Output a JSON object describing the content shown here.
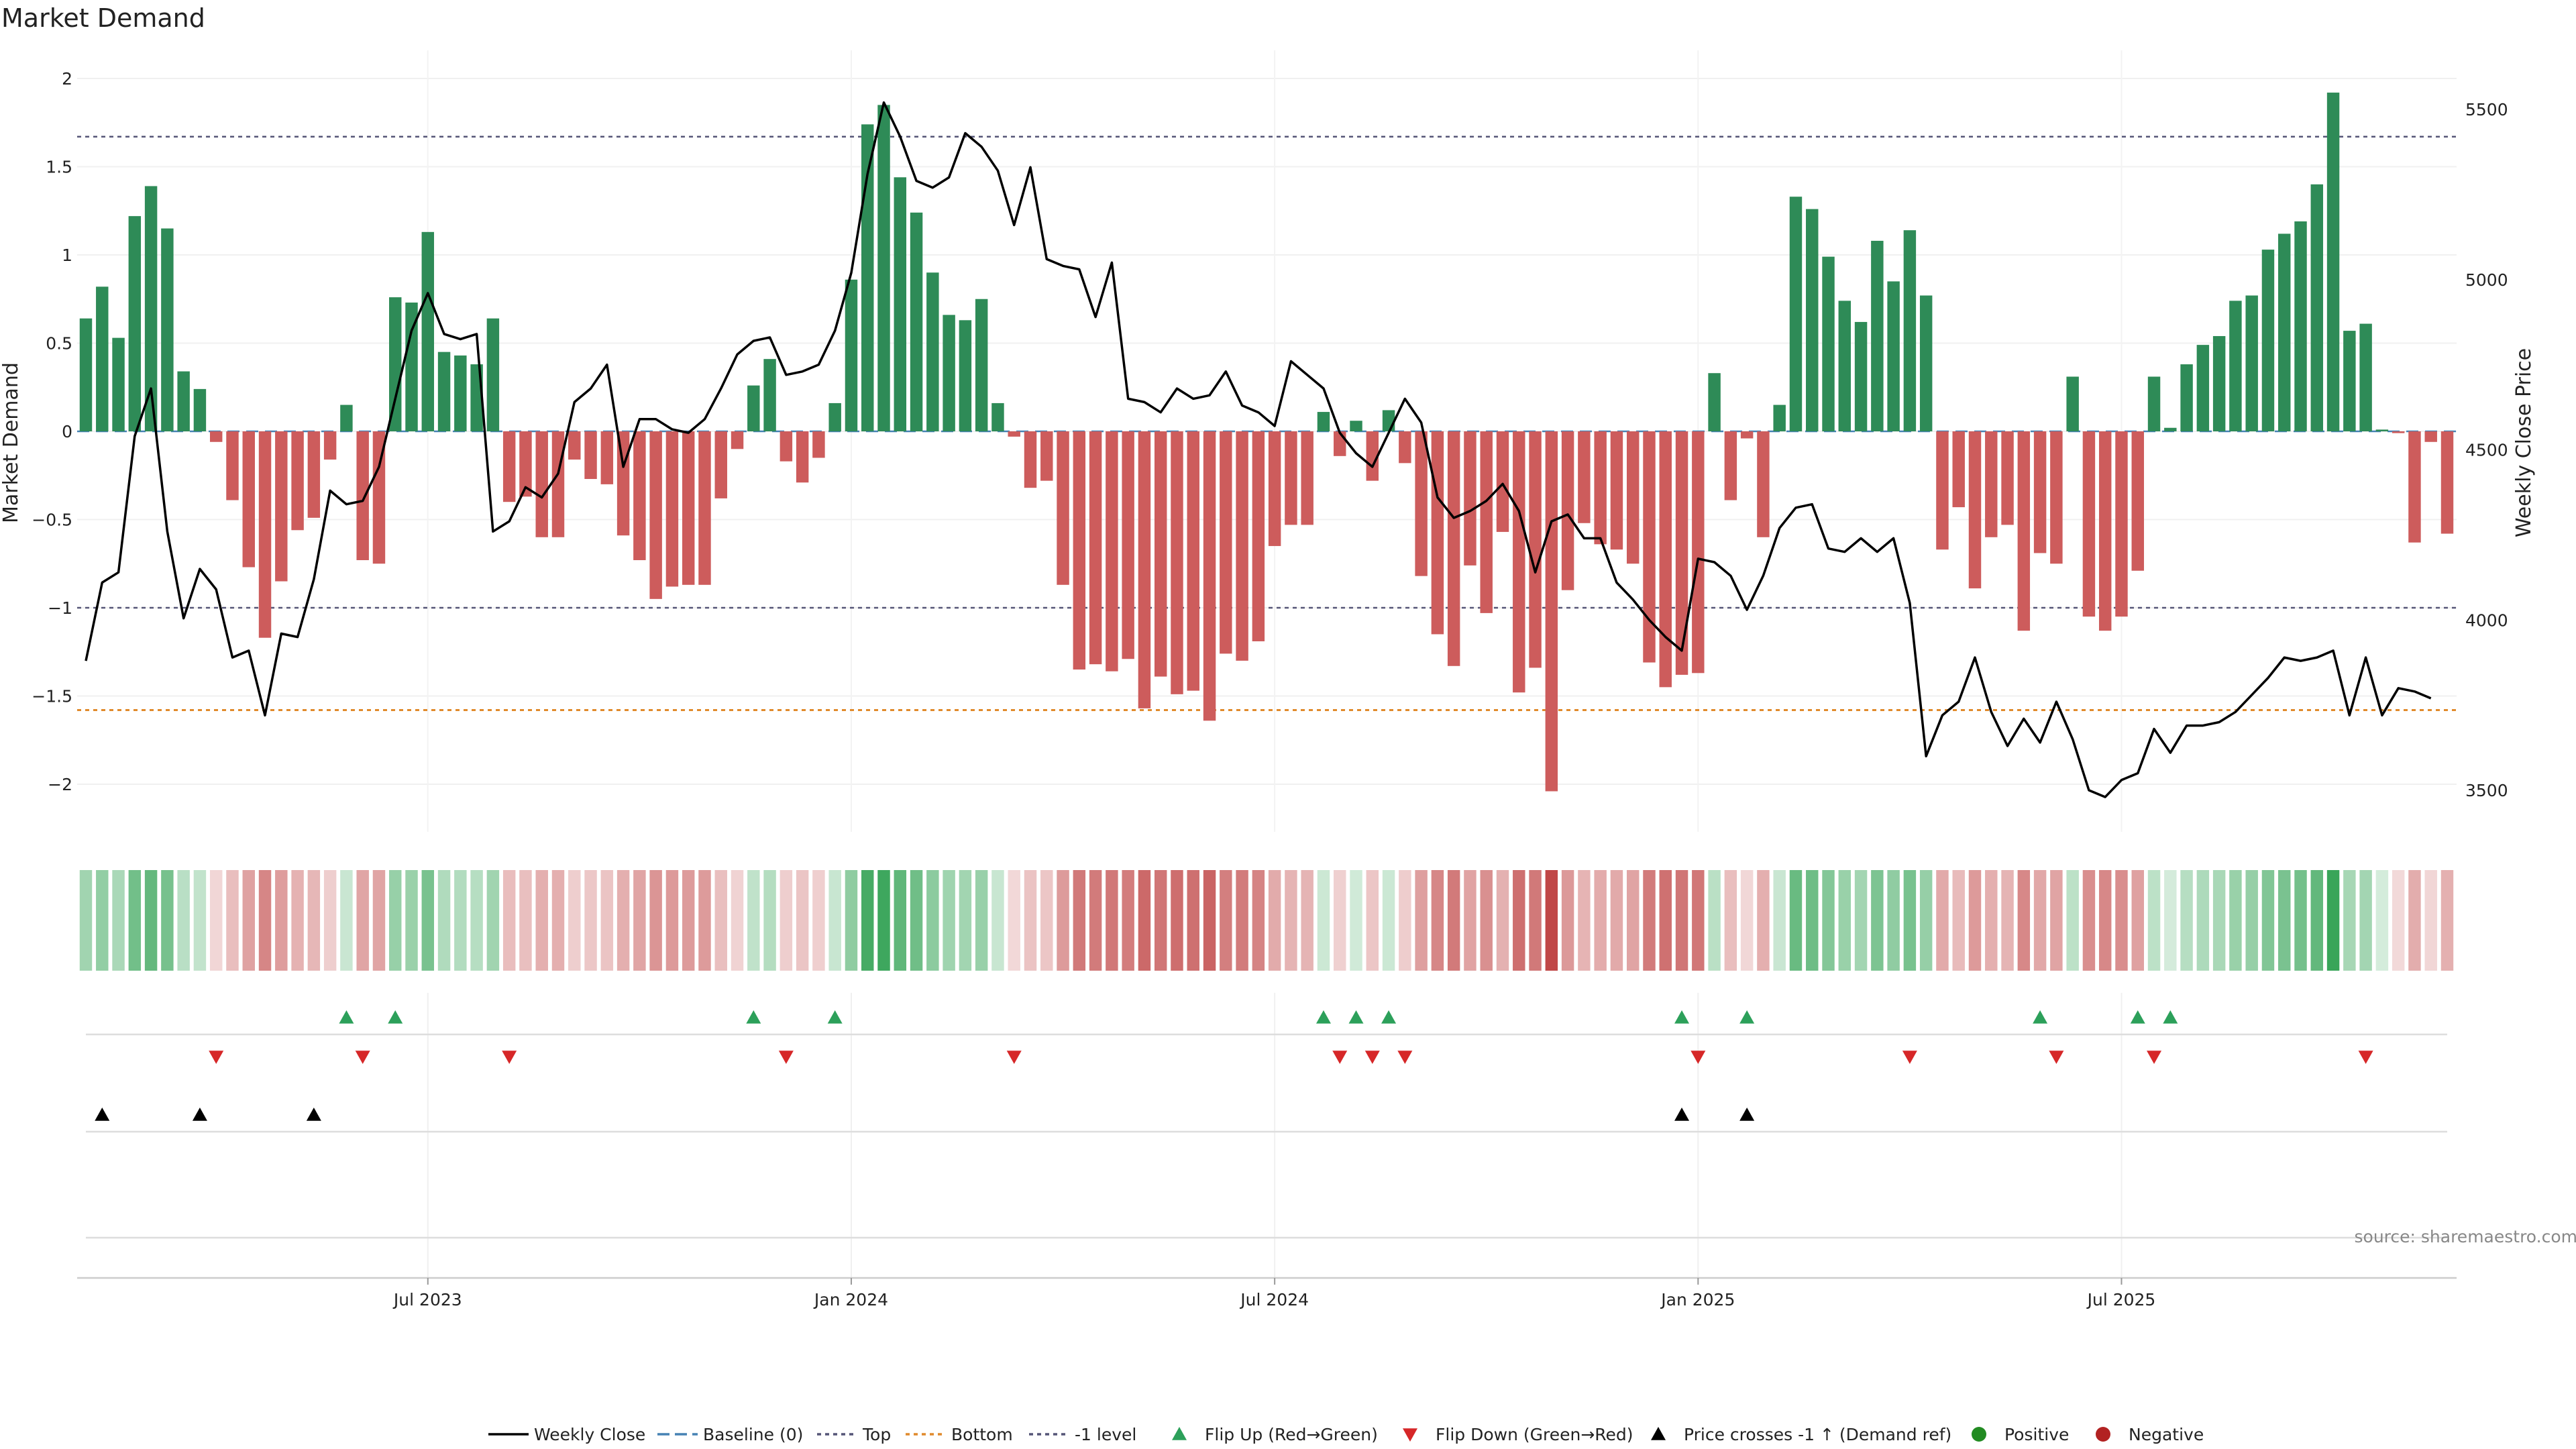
{
  "chart_data": {
    "type": "bar",
    "title": "Market Demand",
    "ylabel": "Market Demand",
    "y2label": "Weekly Close Price",
    "ylim": [
      -2.2,
      2.1
    ],
    "y2lim": [
      3450,
      5550
    ],
    "yticks": [
      2,
      1.5,
      1,
      0.5,
      0,
      -0.5,
      -1,
      -1.5,
      -2
    ],
    "yticklabels": [
      "2",
      "1.5",
      "1",
      "0.5",
      "0",
      "−0.5",
      "−1",
      "−1.5",
      "−2"
    ],
    "y2ticks": [
      5500,
      5000,
      4500,
      4000,
      3500
    ],
    "y2ticklabels": [
      "5500",
      "5000",
      "4500",
      "4000",
      "3500"
    ],
    "xticks": [
      21,
      47,
      73,
      99,
      125
    ],
    "xticklabels": [
      "Jul 2023",
      "Jan 2024",
      "Jul 2024",
      "Jan 2025",
      "Jul 2025"
    ],
    "reference_lines": {
      "top": 1.67,
      "bottom": -1.58,
      "minus_one": -1.0,
      "baseline": 0
    },
    "demand": [
      0.64,
      0.82,
      0.53,
      1.22,
      1.39,
      1.15,
      0.34,
      0.24,
      -0.06,
      -0.39,
      -0.77,
      -1.17,
      -0.85,
      -0.56,
      -0.49,
      -0.16,
      0.15,
      -0.73,
      -0.75,
      0.76,
      0.73,
      1.13,
      0.45,
      0.43,
      0.38,
      0.64,
      -0.4,
      -0.37,
      -0.6,
      -0.6,
      -0.16,
      -0.27,
      -0.3,
      -0.59,
      -0.73,
      -0.95,
      -0.88,
      -0.87,
      -0.87,
      -0.38,
      -0.1,
      0.26,
      0.41,
      -0.17,
      -0.29,
      -0.15,
      0.16,
      0.86,
      1.74,
      1.85,
      1.44,
      1.24,
      0.9,
      0.66,
      0.63,
      0.75,
      0.16,
      -0.03,
      -0.32,
      -0.28,
      -0.87,
      -1.35,
      -1.32,
      -1.36,
      -1.29,
      -1.57,
      -1.39,
      -1.49,
      -1.47,
      -1.64,
      -1.26,
      -1.3,
      -1.19,
      -0.65,
      -0.53,
      -0.53,
      0.11,
      -0.14,
      0.06,
      -0.28,
      0.12,
      -0.18,
      -0.82,
      -1.15,
      -1.33,
      -0.76,
      -1.03,
      -0.57,
      -1.48,
      -1.34,
      -2.04,
      -0.9,
      -0.52,
      -0.64,
      -0.67,
      -0.75,
      -1.31,
      -1.45,
      -1.38,
      -1.37,
      0.33,
      -0.39,
      -0.04,
      -0.6,
      0.15,
      1.33,
      1.26,
      0.99,
      0.74,
      0.62,
      1.08,
      0.85,
      1.14,
      0.77,
      -0.67,
      -0.43,
      -0.89,
      -0.6,
      -0.53,
      -1.13,
      -0.69,
      -0.75,
      0.31,
      -1.05,
      -1.13,
      -1.05,
      -0.79,
      0.31,
      0.02,
      0.38,
      0.49,
      0.54,
      0.74,
      0.77,
      1.03,
      1.12,
      1.19,
      1.4,
      1.92,
      0.57,
      0.61,
      0.01,
      -0.01,
      -0.63,
      -0.06,
      -0.58
    ],
    "price": [
      3880,
      4110,
      4140,
      4540,
      4680,
      4260,
      4005,
      4150,
      4090,
      3890,
      3910,
      3720,
      3960,
      3950,
      4120,
      4380,
      4340,
      4350,
      4450,
      4650,
      4850,
      4960,
      4840,
      4825,
      4840,
      4260,
      4290,
      4390,
      4360,
      4430,
      4640,
      4680,
      4750,
      4450,
      4590,
      4590,
      4560,
      4550,
      4590,
      4680,
      4780,
      4820,
      4830,
      4720,
      4730,
      4750,
      4850,
      5020,
      5310,
      5520,
      5420,
      5290,
      5270,
      5300,
      5430,
      5390,
      5320,
      5160,
      5330,
      5060,
      5040,
      5030,
      4890,
      5050,
      4650,
      4640,
      4610,
      4680,
      4650,
      4660,
      4730,
      4630,
      4610,
      4570,
      4760,
      4720,
      4680,
      4550,
      4490,
      4450,
      4550,
      4650,
      4580,
      4360,
      4300,
      4320,
      4350,
      4400,
      4320,
      4140,
      4290,
      4310,
      4240,
      4240,
      4110,
      4060,
      4000,
      3950,
      3910,
      4180,
      4170,
      4130,
      4030,
      4130,
      4270,
      4330,
      4340,
      4210,
      4200,
      4240,
      4200,
      4240,
      4050,
      3600,
      3720,
      3760,
      3890,
      3730,
      3630,
      3710,
      3640,
      3760,
      3650,
      3500,
      3480,
      3530,
      3550,
      3680,
      3610,
      3690,
      3690,
      3700,
      3730,
      3780,
      3830,
      3890,
      3880,
      3890,
      3910,
      3720,
      3890,
      3720,
      3800,
      3790,
      3770
    ],
    "demand_ref_markers": [
      1,
      7,
      14,
      98,
      102
    ],
    "flip_up": [
      16,
      19,
      41,
      46,
      76,
      78,
      80,
      98,
      102,
      120,
      126,
      128
    ],
    "flip_down": [
      8,
      17,
      26,
      43,
      57,
      77,
      79,
      81,
      99,
      112,
      121,
      127,
      140
    ],
    "colors": {
      "positive": "#2e8b57",
      "negative": "#cd5c5c",
      "price": "#000000",
      "baseline": "#4682b4",
      "top": "#555577",
      "bottom": "#e08a2c",
      "flip_up": "#2ca05a",
      "flip_down": "#d62728",
      "marker_positive": "#228b22",
      "marker_negative": "#b22222"
    },
    "legend": [
      "Weekly Close",
      "Baseline (0)",
      "Top",
      "Bottom",
      "-1 level",
      "Flip Up (Red→Green)",
      "Flip Down (Green→Red)",
      "Price crosses -1 ↑ (Demand ref)",
      "Positive",
      "Negative"
    ],
    "source": "source: sharemaestro.com"
  }
}
